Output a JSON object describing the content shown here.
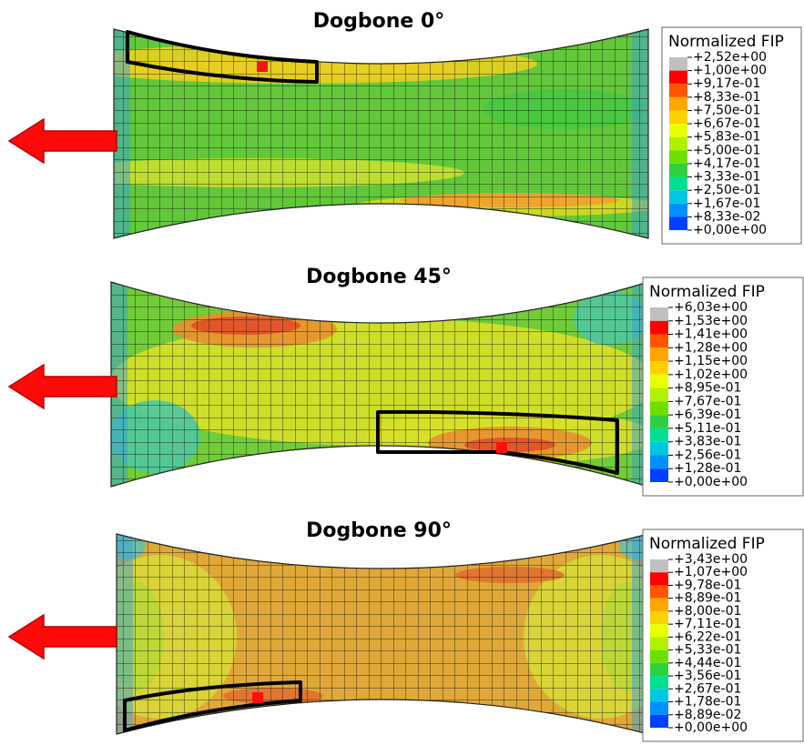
{
  "panels": [
    {
      "title": "Dogbone 0°",
      "legend": {
        "title": "Normalized FIP",
        "labels": [
          "+2,52e+00",
          "+1,00e+00",
          "+9,17e-01",
          "+8,33e-01",
          "+7,50e-01",
          "+6,67e-01",
          "+5,83e-01",
          "+5,00e-01",
          "+4,17e-01",
          "+3,33e-01",
          "+2,50e-01",
          "+1,67e-01",
          "+8,33e-02",
          "+0,00e+00"
        ]
      }
    },
    {
      "title": "Dogbone 45°",
      "legend": {
        "title": "Normalized FIP",
        "labels": [
          "+6,03e+00",
          "+1,53e+00",
          "+1,41e+00",
          "+1,28e+00",
          "+1,15e+00",
          "+1,02e+00",
          "+8,95e-01",
          "+7,67e-01",
          "+6,39e-01",
          "+5,11e-01",
          "+3,83e-01",
          "+2,56e-01",
          "+1,28e-01",
          "+0,00e+00"
        ]
      }
    },
    {
      "title": "Dogbone 90°",
      "legend": {
        "title": "Normalized FIP",
        "labels": [
          "+3,43e+00",
          "+1,07e+00",
          "+9,78e-01",
          "+8,89e-01",
          "+8,00e-01",
          "+7,11e-01",
          "+6,22e-01",
          "+5,33e-01",
          "+4,44e-01",
          "+3,56e-01",
          "+2,67e-01",
          "+1,78e-01",
          "+8,89e-02",
          "+0,00e+00"
        ]
      }
    }
  ]
}
